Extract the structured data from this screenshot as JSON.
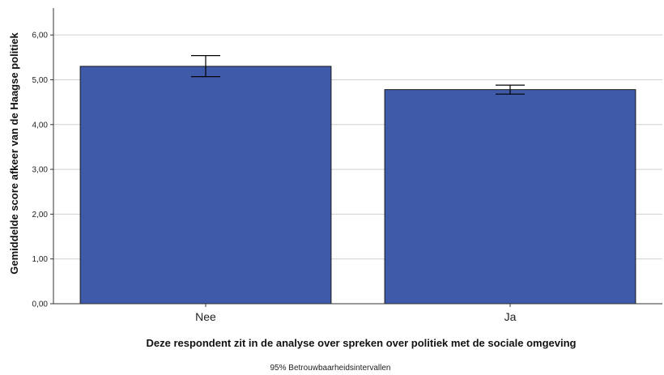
{
  "chart_data": {
    "type": "bar",
    "categories": [
      "Nee",
      "Ja"
    ],
    "values": [
      5.3,
      4.78
    ],
    "error_bars": {
      "lower": [
        5.07,
        4.68
      ],
      "upper": [
        5.54,
        4.88
      ]
    },
    "xlabel": "Deze respondent zit in de analyse over spreken over politiek met de sociale omgeving",
    "ylabel": "Gemiddelde score afkeer van de Haagse politiek",
    "ylim": [
      0,
      6.6
    ],
    "yticks": [
      "0,00",
      "1,00",
      "2,00",
      "3,00",
      "4,00",
      "5,00",
      "6,00"
    ],
    "ytick_values": [
      0,
      1,
      2,
      3,
      4,
      5,
      6
    ],
    "grid": true,
    "note": "95% Betrouwbaarheidsintervallen",
    "colors": {
      "bar": "#3f5aa8",
      "bar_edge": "#1a1a1a",
      "grid": "#cfcfcf",
      "axis": "#333333"
    }
  }
}
